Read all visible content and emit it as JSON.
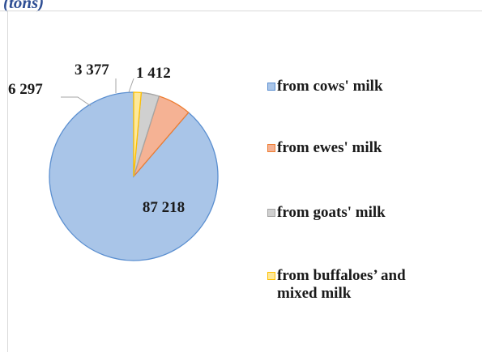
{
  "header": {
    "title_fragment": "(tons)"
  },
  "chart_data": {
    "type": "pie",
    "categories": [
      "from cows' milk",
      "from ewes' milk",
      "from goats' milk",
      "from buffaloes’ and mixed milk"
    ],
    "values": [
      87218,
      6297,
      3377,
      1412
    ],
    "value_labels": [
      "87 218",
      "6 297",
      "3 377",
      "1 412"
    ],
    "colors": {
      "fill": [
        "#a9c5e8",
        "#f5b294",
        "#d0d0d0",
        "#fde89a"
      ],
      "stroke": [
        "#5b8fd0",
        "#ed7d31",
        "#a5a5a5",
        "#ffc000"
      ]
    },
    "legend_position": "right"
  }
}
